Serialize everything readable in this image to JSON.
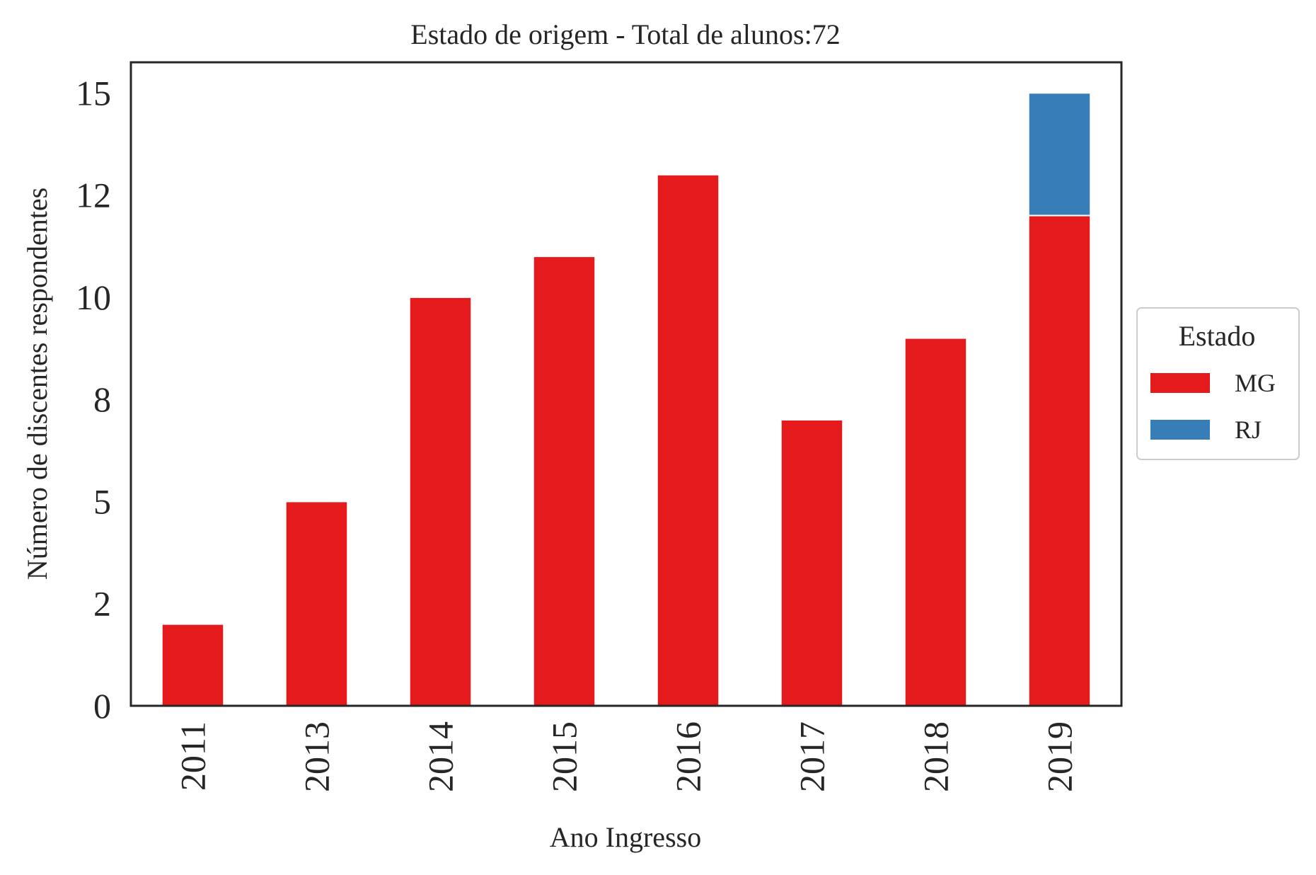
{
  "chart_data": {
    "type": "bar",
    "stacked": true,
    "title": "Estado de origem - Total de alunos:72",
    "xlabel": "Ano Ingresso",
    "ylabel": "Número de discentes respondentes",
    "categories": [
      "2011",
      "2013",
      "2014",
      "2015",
      "2016",
      "2017",
      "2018",
      "2019"
    ],
    "series": [
      {
        "name": "MG",
        "color": "#e41a1c",
        "values": [
          2,
          5,
          10,
          11,
          13,
          7,
          9,
          12
        ]
      },
      {
        "name": "RJ",
        "color": "#377eb8",
        "values": [
          0,
          0,
          0,
          0,
          0,
          0,
          0,
          3
        ]
      }
    ],
    "ylim": [
      0,
      15.75
    ],
    "yticks": [
      0,
      2.5,
      5,
      7.5,
      10,
      12.5,
      15
    ],
    "ytick_labels": [
      "0",
      "2",
      "5",
      "8",
      "10",
      "12",
      "15"
    ],
    "legend": {
      "title": "Estado",
      "placement": "center-right-outside"
    },
    "grid": false
  }
}
